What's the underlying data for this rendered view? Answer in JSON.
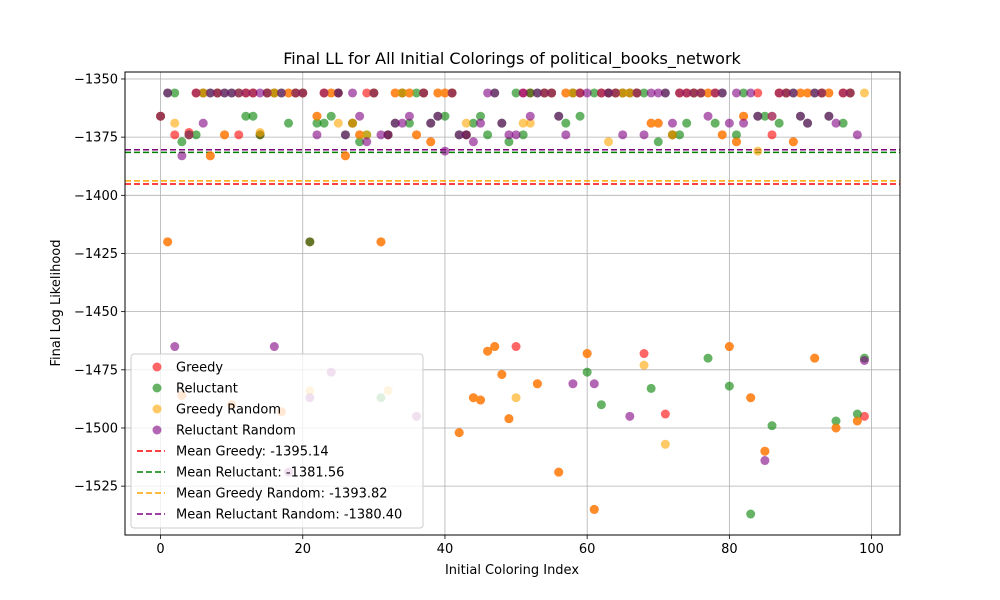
{
  "chart_data": {
    "type": "scatter",
    "title": "Final LL for All Initial Colorings of political_books_network",
    "xlabel": "Initial Coloring Index",
    "ylabel": "Final Log Likelihood",
    "xlim": [
      -5,
      104
    ],
    "ylim": [
      -1546,
      -1347
    ],
    "xticks": [
      0,
      20,
      40,
      60,
      80,
      100
    ],
    "yticks": [
      -1350,
      -1375,
      -1400,
      -1425,
      -1450,
      -1475,
      -1500,
      -1525
    ],
    "xtick_labels": [
      "0",
      "20",
      "40",
      "60",
      "80",
      "100"
    ],
    "ytick_labels": [
      "−1350",
      "−1375",
      "−1400",
      "−1425",
      "−1450",
      "−1475",
      "−1500",
      "−1525"
    ],
    "grid": true,
    "legend_position": "lower-left",
    "series": [
      {
        "name": "Greedy",
        "color": "#ff0000",
        "x": [
          0,
          1,
          2,
          3,
          4,
          5,
          6,
          7,
          8,
          9,
          10,
          11,
          12,
          13,
          14,
          15,
          16,
          17,
          18,
          19,
          20,
          21,
          22,
          23,
          24,
          25,
          26,
          27,
          28,
          29,
          30,
          31,
          32,
          33,
          34,
          35,
          36,
          37,
          38,
          39,
          40,
          41,
          42,
          43,
          44,
          45,
          46,
          47,
          48,
          49,
          50,
          51,
          52,
          53,
          54,
          55,
          56,
          57,
          58,
          59,
          60,
          61,
          62,
          63,
          64,
          65,
          66,
          67,
          68,
          69,
          70,
          71,
          72,
          73,
          74,
          75,
          76,
          77,
          78,
          79,
          80,
          81,
          82,
          83,
          84,
          85,
          86,
          87,
          88,
          89,
          90,
          91,
          92,
          93,
          94,
          95,
          96,
          97,
          98,
          99
        ],
        "y": [
          -1366,
          -1420,
          -1374,
          -1486,
          -1373,
          -1356,
          -1356,
          -1383,
          -1356,
          -1374,
          -1490,
          -1374,
          -1356,
          -1356,
          -1374,
          -1356,
          -1356,
          -1493,
          -1356,
          -1356,
          -1356,
          -1420,
          -1366,
          -1356,
          -1356,
          -1356,
          -1383,
          -1369,
          -1374,
          -1356,
          -1356,
          -1420,
          -1374,
          -1356,
          -1356,
          -1356,
          -1374,
          -1356,
          -1377,
          -1356,
          -1356,
          -1356,
          -1502,
          -1374,
          -1487,
          -1488,
          -1467,
          -1465,
          -1477,
          -1496,
          -1465,
          -1356,
          -1356,
          -1481,
          -1356,
          -1356,
          -1519,
          -1356,
          -1356,
          -1356,
          -1468,
          -1535,
          -1356,
          -1356,
          -1356,
          -1356,
          -1356,
          -1356,
          -1468,
          -1369,
          -1369,
          -1494,
          -1374,
          -1356,
          -1356,
          -1356,
          -1356,
          -1356,
          -1356,
          -1374,
          -1465,
          -1377,
          -1366,
          -1487,
          -1356,
          -1510,
          -1374,
          -1356,
          -1356,
          -1377,
          -1356,
          -1356,
          -1470,
          -1356,
          -1356,
          -1500,
          -1356,
          -1356,
          -1497,
          -1495
        ]
      },
      {
        "name": "Reluctant",
        "color": "#008000",
        "x": [
          0,
          1,
          2,
          3,
          4,
          5,
          6,
          7,
          8,
          9,
          10,
          11,
          12,
          13,
          14,
          15,
          16,
          17,
          18,
          19,
          20,
          21,
          22,
          23,
          24,
          25,
          26,
          27,
          28,
          29,
          30,
          31,
          32,
          33,
          34,
          35,
          36,
          37,
          38,
          39,
          40,
          41,
          42,
          43,
          44,
          45,
          46,
          47,
          48,
          49,
          50,
          51,
          52,
          53,
          54,
          55,
          56,
          57,
          58,
          59,
          60,
          61,
          62,
          63,
          64,
          65,
          66,
          67,
          68,
          69,
          70,
          71,
          72,
          73,
          74,
          75,
          76,
          77,
          78,
          79,
          80,
          81,
          82,
          83,
          84,
          85,
          86,
          87,
          88,
          89,
          90,
          91,
          92,
          93,
          94,
          95,
          96,
          97,
          98,
          99
        ],
        "y": [
          -1366,
          -1356,
          -1356,
          -1377,
          -1374,
          -1374,
          -1356,
          -1356,
          -1356,
          -1356,
          -1356,
          -1356,
          -1366,
          -1366,
          -1374,
          -1356,
          -1356,
          -1356,
          -1369,
          -1356,
          -1356,
          -1420,
          -1369,
          -1369,
          -1366,
          -1356,
          -1374,
          -1369,
          -1377,
          -1374,
          -1356,
          -1487,
          -1374,
          -1369,
          -1356,
          -1369,
          -1356,
          -1356,
          -1369,
          -1366,
          -1366,
          -1356,
          -1374,
          -1374,
          -1369,
          -1366,
          -1374,
          -1356,
          -1369,
          -1377,
          -1356,
          -1374,
          -1356,
          -1356,
          -1356,
          -1356,
          -1366,
          -1369,
          -1356,
          -1366,
          -1476,
          -1356,
          -1490,
          -1356,
          -1356,
          -1356,
          -1356,
          -1356,
          -1356,
          -1483,
          -1377,
          -1356,
          -1374,
          -1374,
          -1369,
          -1356,
          -1356,
          -1470,
          -1369,
          -1356,
          -1482,
          -1374,
          -1356,
          -1537,
          -1366,
          -1366,
          -1499,
          -1369,
          -1356,
          -1356,
          -1366,
          -1369,
          -1356,
          -1356,
          -1366,
          -1497,
          -1369,
          -1356,
          -1494,
          -1470
        ]
      },
      {
        "name": "Greedy Random",
        "color": "#ffa500",
        "x": [
          0,
          1,
          2,
          3,
          4,
          5,
          6,
          7,
          8,
          9,
          10,
          11,
          12,
          13,
          14,
          15,
          16,
          17,
          18,
          19,
          20,
          21,
          22,
          23,
          24,
          25,
          26,
          27,
          28,
          29,
          30,
          31,
          32,
          33,
          34,
          35,
          36,
          37,
          38,
          39,
          40,
          41,
          42,
          43,
          44,
          45,
          46,
          47,
          48,
          49,
          50,
          51,
          52,
          53,
          54,
          55,
          56,
          57,
          58,
          59,
          60,
          61,
          62,
          63,
          64,
          65,
          66,
          67,
          68,
          69,
          70,
          71,
          72,
          73,
          74,
          75,
          76,
          77,
          78,
          79,
          80,
          81,
          82,
          83,
          84,
          85,
          86,
          87,
          88,
          89,
          90,
          91,
          92,
          93,
          94,
          95,
          96,
          97,
          98,
          99
        ],
        "y": [
          -1366,
          -1420,
          -1369,
          -1486,
          -1374,
          -1356,
          -1356,
          -1383,
          -1356,
          -1374,
          -1490,
          -1356,
          -1356,
          -1356,
          -1373,
          -1356,
          -1356,
          -1493,
          -1356,
          -1356,
          -1356,
          -1484,
          -1366,
          -1356,
          -1356,
          -1369,
          -1383,
          -1369,
          -1374,
          -1374,
          -1356,
          -1420,
          -1484,
          -1356,
          -1356,
          -1356,
          -1374,
          -1356,
          -1377,
          -1356,
          -1356,
          -1356,
          -1502,
          -1369,
          -1487,
          -1488,
          -1467,
          -1465,
          -1477,
          -1496,
          -1487,
          -1369,
          -1369,
          -1481,
          -1356,
          -1356,
          -1519,
          -1356,
          -1356,
          -1356,
          -1468,
          -1535,
          -1356,
          -1377,
          -1356,
          -1356,
          -1356,
          -1356,
          -1473,
          -1369,
          -1369,
          -1507,
          -1374,
          -1356,
          -1356,
          -1356,
          -1356,
          -1356,
          -1356,
          -1374,
          -1465,
          -1377,
          -1366,
          -1487,
          -1381,
          -1510,
          -1366,
          -1356,
          -1356,
          -1377,
          -1356,
          -1356,
          -1470,
          -1356,
          -1356,
          -1500,
          -1356,
          -1356,
          -1497,
          -1356
        ]
      },
      {
        "name": "Reluctant Random",
        "color": "#800080",
        "x": [
          0,
          1,
          2,
          3,
          4,
          5,
          6,
          7,
          8,
          9,
          10,
          11,
          12,
          13,
          14,
          15,
          16,
          17,
          18,
          19,
          20,
          21,
          22,
          23,
          24,
          25,
          26,
          27,
          28,
          29,
          30,
          31,
          32,
          33,
          34,
          35,
          36,
          37,
          38,
          39,
          40,
          41,
          42,
          43,
          44,
          45,
          46,
          47,
          48,
          49,
          50,
          51,
          52,
          53,
          54,
          55,
          56,
          57,
          58,
          59,
          60,
          61,
          62,
          63,
          64,
          65,
          66,
          67,
          68,
          69,
          70,
          71,
          72,
          73,
          74,
          75,
          76,
          77,
          78,
          79,
          80,
          81,
          82,
          83,
          84,
          85,
          86,
          87,
          88,
          89,
          90,
          91,
          92,
          93,
          94,
          95,
          96,
          97,
          98,
          99
        ],
        "y": [
          -1366,
          -1356,
          -1465,
          -1383,
          -1374,
          -1356,
          -1369,
          -1356,
          -1356,
          -1356,
          -1356,
          -1356,
          -1356,
          -1356,
          -1356,
          -1356,
          -1465,
          -1356,
          -1519,
          -1356,
          -1356,
          -1487,
          -1374,
          -1356,
          -1476,
          -1356,
          -1374,
          -1356,
          -1366,
          -1377,
          -1356,
          -1374,
          -1374,
          -1369,
          -1369,
          -1366,
          -1495,
          -1356,
          -1369,
          -1366,
          -1381,
          -1356,
          -1374,
          -1374,
          -1377,
          -1369,
          -1356,
          -1356,
          -1369,
          -1374,
          -1374,
          -1356,
          -1366,
          -1356,
          -1356,
          -1356,
          -1366,
          -1374,
          -1481,
          -1356,
          -1356,
          -1481,
          -1356,
          -1356,
          -1356,
          -1374,
          -1495,
          -1356,
          -1374,
          -1356,
          -1356,
          -1356,
          -1369,
          -1356,
          -1356,
          -1356,
          -1356,
          -1366,
          -1356,
          -1356,
          -1369,
          -1356,
          -1369,
          -1356,
          -1366,
          -1514,
          -1366,
          -1356,
          -1356,
          -1356,
          -1366,
          -1369,
          -1356,
          -1356,
          -1366,
          -1369,
          -1356,
          -1356,
          -1374,
          -1471
        ]
      }
    ],
    "mean_lines": [
      {
        "name": "Mean Greedy: -1395.14",
        "value": -1395.14,
        "color": "#ff0000"
      },
      {
        "name": "Mean Reluctant: -1381.56",
        "value": -1381.56,
        "color": "#008000"
      },
      {
        "name": "Mean Greedy Random: -1393.82",
        "value": -1393.82,
        "color": "#ffa500"
      },
      {
        "name": "Mean Reluctant Random: -1380.40",
        "value": -1380.4,
        "color": "#800080"
      }
    ]
  }
}
